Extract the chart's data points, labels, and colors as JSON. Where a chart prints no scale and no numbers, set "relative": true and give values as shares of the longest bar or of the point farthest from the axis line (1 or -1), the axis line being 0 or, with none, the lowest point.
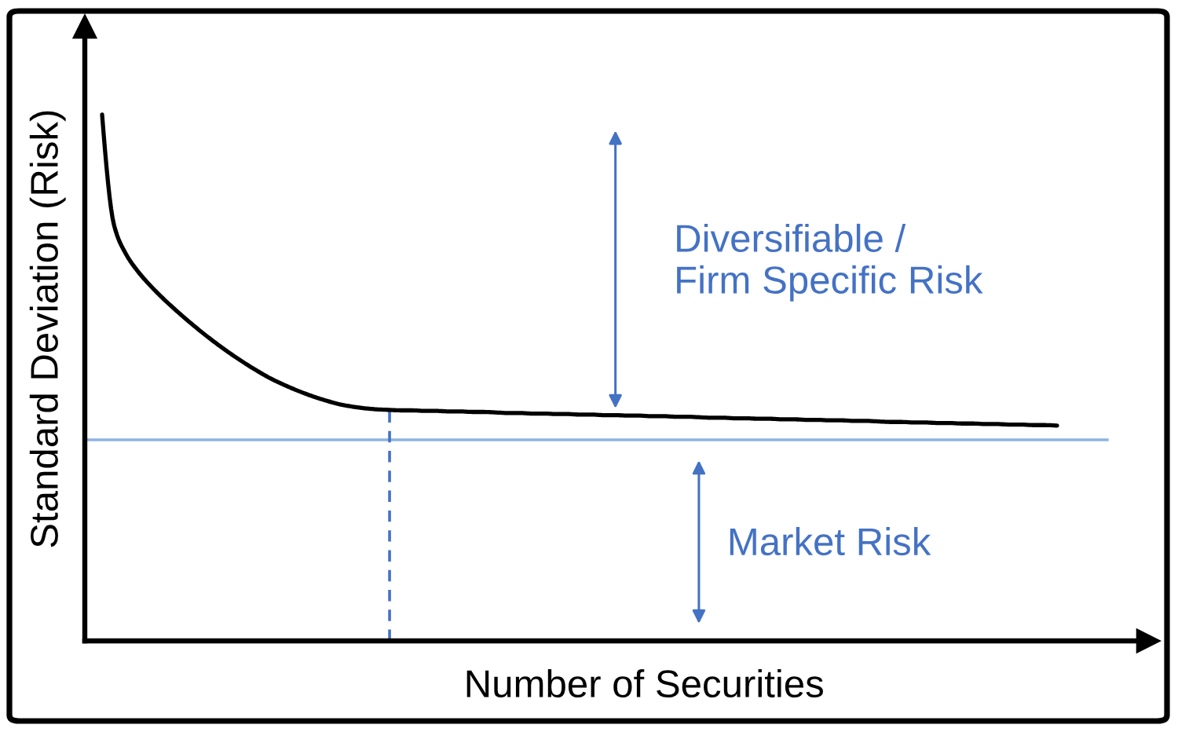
{
  "chart_data": {
    "type": "line",
    "relative": true,
    "xlabel": "Number of Securities",
    "ylabel": "Standard Deviation (Risk)",
    "categories": [
      null,
      null,
      null,
      null,
      null,
      null,
      null,
      null,
      null,
      null,
      null,
      null,
      null,
      null,
      null,
      null,
      null,
      null,
      null,
      null,
      null,
      null,
      null,
      null,
      null,
      null,
      null,
      null,
      null,
      null,
      null,
      null,
      null,
      null,
      null,
      null,
      null,
      null,
      null,
      null,
      null,
      null,
      null,
      null,
      null,
      null,
      null,
      null,
      null,
      null,
      null,
      null,
      null,
      null,
      null,
      null,
      null,
      null,
      null,
      null,
      null,
      null,
      null,
      null,
      null,
      null,
      null,
      null,
      null,
      null,
      null,
      null,
      null,
      null,
      null,
      null,
      null,
      null,
      null,
      null,
      null
    ],
    "series": [
      {
        "color": "#000000",
        "values": [
          1.0,
          0.79,
          0.735,
          0.702,
          0.676,
          0.653,
          0.632,
          0.612,
          0.593,
          0.575,
          0.558,
          0.542,
          0.527,
          0.513,
          0.5,
          0.489,
          0.479,
          0.47,
          0.462,
          0.455,
          0.449,
          0.445,
          0.442,
          0.44,
          0.439,
          0.438,
          0.438,
          0.437,
          0.437,
          0.436,
          0.436,
          0.435,
          0.435,
          0.434,
          0.433,
          0.433,
          0.432,
          0.432,
          0.431,
          0.431,
          0.43,
          0.43,
          0.429,
          0.429,
          0.428,
          0.428,
          0.427,
          0.427,
          0.426,
          0.426,
          0.425,
          0.424,
          0.424,
          0.423,
          0.423,
          0.422,
          0.422,
          0.421,
          0.421,
          0.42,
          0.42,
          0.419,
          0.419,
          0.418,
          0.418,
          0.417,
          0.416,
          0.416,
          0.415,
          0.415,
          0.414,
          0.414,
          0.413,
          0.413,
          0.412,
          0.412,
          0.411,
          0.411,
          0.41,
          0.41,
          0.409
        ]
      }
    ],
    "ref_lines": [
      {
        "axis": "y",
        "value": 0.382,
        "color": "#8db3e2",
        "line_style": "solid"
      }
    ],
    "annotations": [
      "Diversifiable /\nFirm Specific Risk",
      "Market Risk"
    ]
  }
}
